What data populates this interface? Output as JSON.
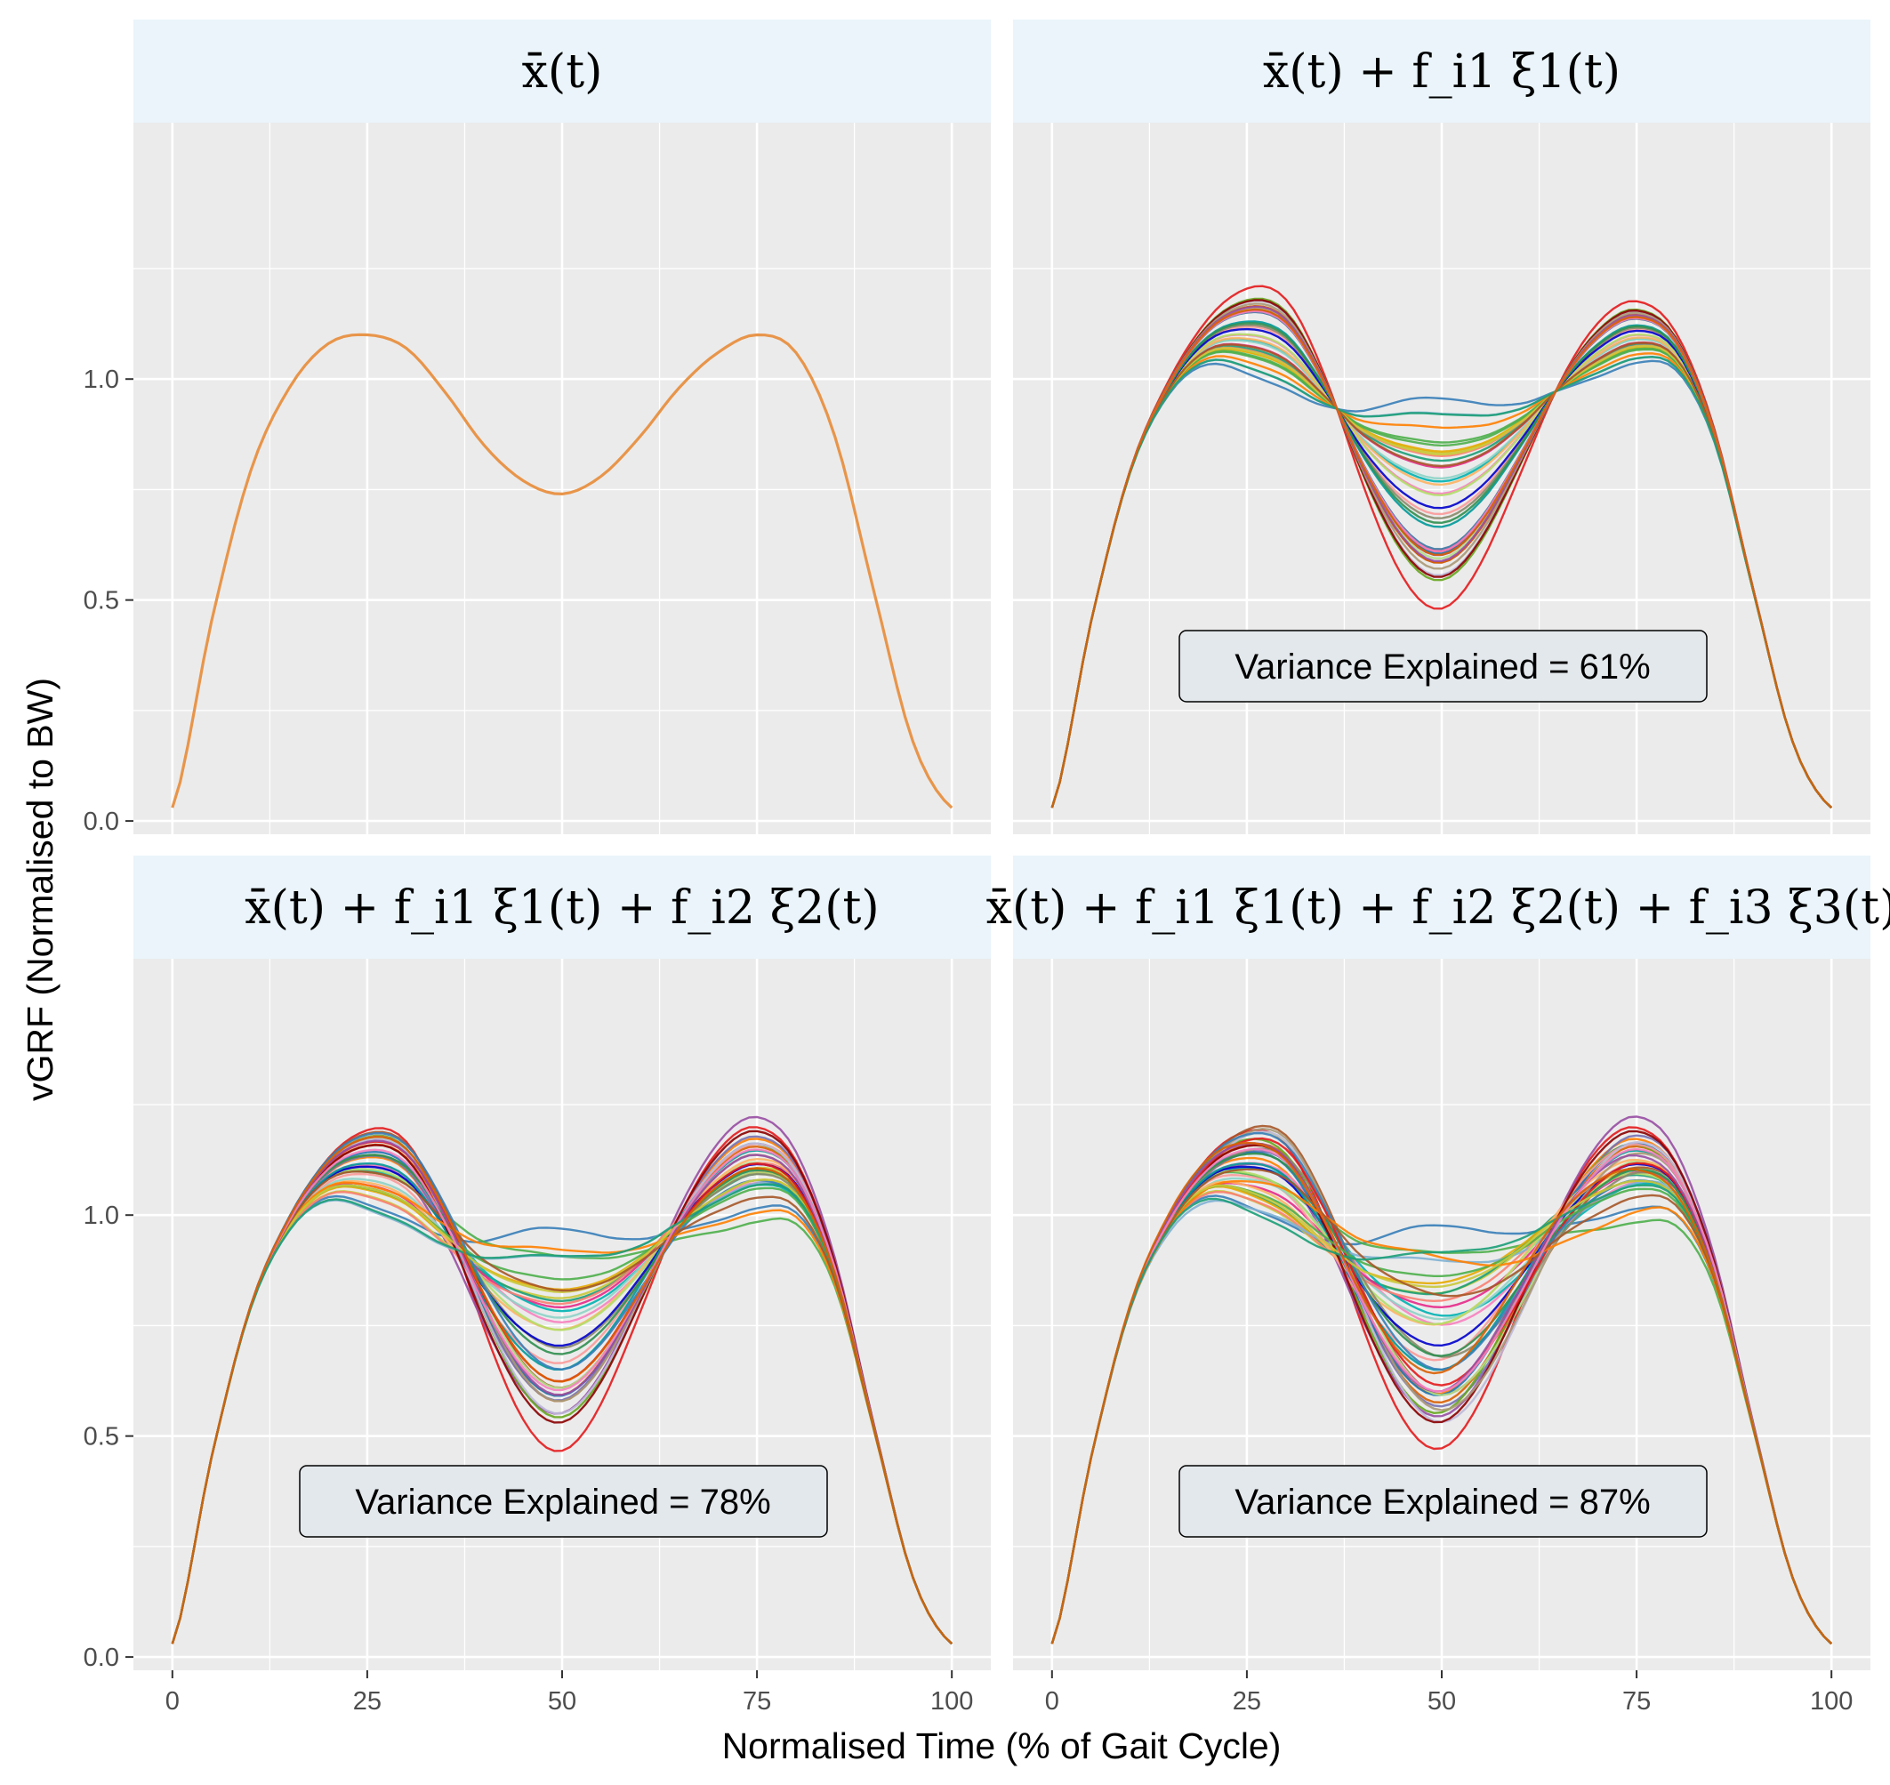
{
  "x_axis_label": "Normalised Time (% of Gait Cycle)",
  "y_axis_label": "vGRF (Normalised to BW)",
  "x_ticks": [
    "0",
    "25",
    "50",
    "75",
    "100"
  ],
  "y_ticks": [
    "0.0",
    "0.5",
    "1.0"
  ],
  "panels": [
    {
      "title": "x̄(t)",
      "annotation": ""
    },
    {
      "title": "x̄(t) + f_i1 ξ1(t)",
      "annotation": "Variance Explained = 61%"
    },
    {
      "title": "x̄(t) + f_i1 ξ1(t) + f_i2 ξ2(t)",
      "annotation": "Variance Explained = 78%"
    },
    {
      "title": "x̄(t) + f_i1 ξ1(t) + f_i2 ξ2(t) + f_i3 ξ3(t)",
      "annotation": "Variance Explained = 87%"
    }
  ],
  "colors": {
    "panel_background": "#ebebeb",
    "strip_background": "#eaf4fa",
    "grid": "#ffffff",
    "mean_curve": "#e8954a",
    "curve_palette": [
      "#e41a1c",
      "#377eb8",
      "#4daf4a",
      "#984ea3",
      "#ff7f00",
      "#c9c93a",
      "#a65628",
      "#f781bf",
      "#1b9e77",
      "#d95f02",
      "#7570b3",
      "#e7298a",
      "#66a61e",
      "#e6ab02",
      "#1f78b4",
      "#b2df8a",
      "#fb9a99",
      "#00b3b3",
      "#8dd3c7",
      "#bebada",
      "#fb8072",
      "#80b1d3",
      "#fdb462",
      "#b3de69",
      "#8a8a6a",
      "#0000cc",
      "#009999",
      "#8b0000",
      "#aa9977",
      "#2f8f4f"
    ]
  },
  "chart_data": [
    {
      "type": "line",
      "title": "x̄(t)",
      "xlabel": "Normalised Time (% of Gait Cycle)",
      "ylabel": "vGRF (Normalised to BW)",
      "xlim": [
        -5,
        105
      ],
      "ylim": [
        -0.03,
        1.58
      ],
      "grid": true,
      "series": [
        {
          "values_x": [
            0,
            5,
            10,
            15,
            20,
            25,
            30,
            35,
            40,
            45,
            50,
            55,
            60,
            65,
            70,
            75,
            80,
            85,
            90,
            95,
            100
          ],
          "values_y": [
            0.03,
            0.45,
            0.79,
            0.98,
            1.08,
            1.1,
            1.07,
            0.97,
            0.85,
            0.77,
            0.74,
            0.78,
            0.87,
            0.98,
            1.06,
            1.1,
            1.06,
            0.87,
            0.52,
            0.18,
            0.03
          ]
        }
      ],
      "annotation": ""
    },
    {
      "type": "line",
      "title": "x̄(t) + f_i1 ξ1(t)",
      "xlim": [
        -5,
        105
      ],
      "ylim": [
        -0.03,
        1.58
      ],
      "grid": true,
      "mean_x": [
        0,
        5,
        10,
        15,
        20,
        25,
        30,
        35,
        40,
        45,
        50,
        55,
        60,
        65,
        70,
        75,
        80,
        85,
        90,
        95,
        100
      ],
      "mean_y": [
        0.03,
        0.45,
        0.79,
        0.98,
        1.08,
        1.1,
        1.07,
        0.97,
        0.85,
        0.77,
        0.74,
        0.78,
        0.87,
        0.98,
        1.06,
        1.1,
        1.06,
        0.87,
        0.52,
        0.18,
        0.03
      ],
      "n_curves": 40,
      "score_range": [
        -0.2,
        0.24
      ],
      "envelope": {
        "peak1": [
          1.01,
          1.31
        ],
        "valley": [
          0.53,
          0.87
        ],
        "peak2": [
          1.04,
          1.22
        ]
      },
      "annotation": "Variance Explained = 61%"
    },
    {
      "type": "line",
      "title": "x̄(t) + f_i1 ξ1(t) + f_i2 ξ2(t)",
      "xlim": [
        -5,
        105
      ],
      "ylim": [
        -0.03,
        1.58
      ],
      "grid": true,
      "n_curves": 40,
      "envelope": {
        "peak1": [
          0.99,
          1.31
        ],
        "valley": [
          0.53,
          0.86
        ],
        "peak2": [
          0.92,
          1.25
        ]
      },
      "annotation": "Variance Explained = 78%"
    },
    {
      "type": "line",
      "title": "x̄(t) + f_i1 ξ1(t) + f_i2 ξ2(t) + f_i3 ξ3(t)",
      "xlim": [
        -5,
        105
      ],
      "ylim": [
        -0.03,
        1.58
      ],
      "grid": true,
      "n_curves": 40,
      "envelope": {
        "peak1": [
          0.98,
          1.31
        ],
        "valley": [
          0.56,
          0.9
        ],
        "peak2": [
          0.91,
          1.25
        ]
      },
      "annotation": "Variance Explained = 87%"
    }
  ]
}
